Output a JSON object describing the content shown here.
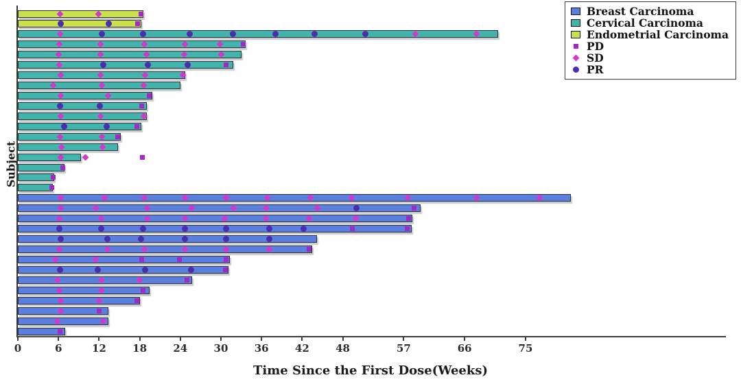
{
  "chart_data": {
    "type": "bar",
    "subtype": "horizontal-swimmer-plot",
    "title": "",
    "xlabel": "Time Since the First Dose(Weeks)",
    "ylabel": "Subject",
    "x_ticks": [
      0,
      6,
      12,
      18,
      24,
      30,
      36,
      42,
      48,
      57,
      66,
      75
    ],
    "xlim": [
      0,
      104.6
    ],
    "grid": false,
    "legend_position": "top-right",
    "groups": [
      {
        "id": "breast",
        "label": "Breast Carcinoma",
        "color": "#5b7fdf"
      },
      {
        "id": "cervical",
        "label": "Cervical Carcinoma",
        "color": "#41b5ac"
      },
      {
        "id": "endometrial",
        "label": "Endometrial Carcinoma",
        "color": "#c9e24a"
      }
    ],
    "markers": [
      {
        "id": "PD",
        "label": "PD",
        "shape": "square",
        "color": "#a428c8"
      },
      {
        "id": "SD",
        "label": "SD",
        "shape": "diamond",
        "color": "#d437cc"
      },
      {
        "id": "PR",
        "label": "PR",
        "shape": "circle",
        "color": "#4b2db2"
      }
    ],
    "bars": [
      {
        "group": "endometrial",
        "length_weeks": 18.5,
        "events": [
          [
            "SD",
            6.2
          ],
          [
            "SD",
            11.9
          ],
          [
            "PD",
            18.2
          ]
        ]
      },
      {
        "group": "endometrial",
        "length_weeks": 18.2,
        "events": [
          [
            "PR",
            6.3
          ],
          [
            "PR",
            13.4
          ],
          [
            "PD",
            17.7
          ]
        ]
      },
      {
        "group": "cervical",
        "length_weeks": 71.0,
        "events": [
          [
            "SD",
            6.2
          ],
          [
            "PR",
            12.4
          ],
          [
            "PR",
            18.5
          ],
          [
            "PR",
            25.4
          ],
          [
            "PR",
            31.8
          ],
          [
            "PR",
            38.1
          ],
          [
            "PR",
            43.8
          ],
          [
            "PR",
            51.3
          ],
          [
            "SD",
            58.7
          ],
          [
            "SD",
            67.8
          ]
        ]
      },
      {
        "group": "cervical",
        "length_weeks": 33.7,
        "events": [
          [
            "SD",
            6.1
          ],
          [
            "SD",
            12.2
          ],
          [
            "SD",
            18.7
          ],
          [
            "SD",
            24.7
          ],
          [
            "SD",
            29.8
          ],
          [
            "PD",
            33.3
          ]
        ]
      },
      {
        "group": "cervical",
        "length_weeks": 33.0,
        "events": [
          [
            "SD",
            6.0
          ],
          [
            "SD",
            12.2
          ],
          [
            "SD",
            19.0
          ],
          [
            "SD",
            24.6
          ],
          [
            "SD",
            30.1
          ]
        ]
      },
      {
        "group": "cervical",
        "length_weeks": 31.8,
        "events": [
          [
            "SD",
            6.1
          ],
          [
            "PR",
            12.6
          ],
          [
            "PR",
            19.2
          ],
          [
            "PR",
            25.1
          ],
          [
            "PD",
            30.8
          ]
        ]
      },
      {
        "group": "cervical",
        "length_weeks": 24.7,
        "events": [
          [
            "SD",
            6.3
          ],
          [
            "SD",
            12.2
          ],
          [
            "SD",
            18.8
          ],
          [
            "SD",
            24.4
          ]
        ]
      },
      {
        "group": "cervical",
        "length_weeks": 24.0,
        "events": [
          [
            "SD",
            5.2
          ],
          [
            "SD",
            12.4
          ],
          [
            "SD",
            18.6
          ]
        ]
      },
      {
        "group": "cervical",
        "length_weeks": 19.9,
        "events": [
          [
            "SD",
            6.3
          ],
          [
            "SD",
            13.3
          ],
          [
            "PD",
            19.4
          ]
        ]
      },
      {
        "group": "cervical",
        "length_weeks": 19.1,
        "events": [
          [
            "PR",
            6.2
          ],
          [
            "PR",
            12.1
          ],
          [
            "PD",
            18.3
          ]
        ]
      },
      {
        "group": "cervical",
        "length_weeks": 19.1,
        "events": [
          [
            "SD",
            6.3
          ],
          [
            "SD",
            12.2
          ],
          [
            "SD",
            18.6
          ]
        ]
      },
      {
        "group": "cervical",
        "length_weeks": 18.2,
        "events": [
          [
            "PR",
            6.8
          ],
          [
            "PR",
            13.1
          ],
          [
            "PD",
            17.6
          ]
        ]
      },
      {
        "group": "cervical",
        "length_weeks": 15.2,
        "events": [
          [
            "SD",
            6.2
          ],
          [
            "SD",
            12.4
          ],
          [
            "PD",
            14.7
          ]
        ]
      },
      {
        "group": "cervical",
        "length_weeks": 14.8,
        "events": [
          [
            "SD",
            6.4
          ],
          [
            "SD",
            12.5
          ]
        ]
      },
      {
        "group": "cervical",
        "length_weeks": 9.3,
        "events": [
          [
            "SD",
            6.3
          ],
          [
            "SD",
            10.0
          ],
          [
            "PD",
            18.4
          ]
        ]
      },
      {
        "group": "cervical",
        "length_weeks": 6.9,
        "events": [
          [
            "PD",
            6.6
          ]
        ]
      },
      {
        "group": "cervical",
        "length_weeks": 5.4,
        "events": [
          [
            "PD",
            5.2
          ]
        ]
      },
      {
        "group": "cervical",
        "length_weeks": 5.2,
        "events": [
          [
            "PD",
            5.0
          ]
        ]
      },
      {
        "group": "breast",
        "length_weeks": 81.7,
        "events": [
          [
            "SD",
            6.3
          ],
          [
            "SD",
            12.8
          ],
          [
            "SD",
            18.7
          ],
          [
            "SD",
            24.7
          ],
          [
            "SD",
            30.8
          ],
          [
            "SD",
            36.8
          ],
          [
            "SD",
            43.2
          ],
          [
            "SD",
            49.3
          ],
          [
            "SD",
            57.6
          ],
          [
            "SD",
            67.8
          ],
          [
            "SD",
            77.1
          ]
        ]
      },
      {
        "group": "breast",
        "length_weeks": 59.5,
        "events": [
          [
            "SD",
            6.3
          ],
          [
            "SD",
            11.5
          ],
          [
            "SD",
            19.1
          ],
          [
            "SD",
            25.7
          ],
          [
            "SD",
            31.9
          ],
          [
            "SD",
            36.6
          ],
          [
            "SD",
            44.2
          ],
          [
            "PR",
            50.0
          ],
          [
            "PD",
            58.5
          ]
        ]
      },
      {
        "group": "breast",
        "length_weeks": 58.3,
        "events": [
          [
            "SD",
            6.1
          ],
          [
            "SD",
            12.3
          ],
          [
            "SD",
            19.1
          ],
          [
            "SD",
            24.7
          ],
          [
            "SD",
            30.6
          ],
          [
            "SD",
            36.6
          ],
          [
            "SD",
            43.0
          ],
          [
            "SD",
            49.9
          ],
          [
            "PD",
            57.7
          ]
        ]
      },
      {
        "group": "breast",
        "length_weeks": 58.2,
        "events": [
          [
            "PR",
            6.1
          ],
          [
            "PR",
            12.3
          ],
          [
            "PR",
            18.5
          ],
          [
            "PR",
            24.7
          ],
          [
            "PR",
            30.8
          ],
          [
            "PR",
            37.1
          ],
          [
            "PR",
            42.2
          ],
          [
            "PD",
            49.4
          ],
          [
            "PD",
            57.5
          ]
        ]
      },
      {
        "group": "breast",
        "length_weeks": 44.2,
        "events": [
          [
            "PR",
            6.3
          ],
          [
            "PR",
            13.2
          ],
          [
            "PR",
            18.2
          ],
          [
            "PR",
            24.7
          ],
          [
            "PR",
            30.8
          ],
          [
            "PR",
            37.1
          ]
        ]
      },
      {
        "group": "breast",
        "length_weeks": 43.5,
        "events": [
          [
            "SD",
            6.1
          ],
          [
            "SD",
            13.2
          ],
          [
            "SD",
            18.7
          ],
          [
            "SD",
            24.7
          ],
          [
            "SD",
            30.8
          ],
          [
            "SD",
            37.1
          ],
          [
            "PD",
            43.0
          ]
        ]
      },
      {
        "group": "breast",
        "length_weeks": 31.3,
        "events": [
          [
            "SD",
            5.5
          ],
          [
            "SD",
            11.5
          ],
          [
            "PD",
            18.3
          ],
          [
            "PD",
            23.9
          ],
          [
            "PD",
            30.8
          ]
        ]
      },
      {
        "group": "breast",
        "length_weeks": 31.1,
        "events": [
          [
            "PR",
            6.2
          ],
          [
            "PR",
            11.8
          ],
          [
            "PR",
            18.8
          ],
          [
            "PR",
            25.6
          ],
          [
            "PD",
            30.7
          ]
        ]
      },
      {
        "group": "breast",
        "length_weeks": 25.7,
        "events": [
          [
            "SD",
            5.8
          ],
          [
            "SD",
            12.3
          ],
          [
            "SD",
            18.0
          ],
          [
            "PD",
            25.0
          ]
        ]
      },
      {
        "group": "breast",
        "length_weeks": 19.5,
        "events": [
          [
            "SD",
            6.1
          ],
          [
            "SD",
            12.3
          ],
          [
            "PD",
            18.5
          ]
        ]
      },
      {
        "group": "breast",
        "length_weeks": 18.0,
        "events": [
          [
            "SD",
            6.3
          ],
          [
            "SD",
            12.0
          ],
          [
            "PD",
            17.6
          ]
        ]
      },
      {
        "group": "breast",
        "length_weeks": 13.4,
        "events": [
          [
            "SD",
            6.3
          ],
          [
            "PD",
            12.0
          ]
        ]
      },
      {
        "group": "breast",
        "length_weeks": 13.4,
        "events": [
          [
            "SD",
            5.8
          ],
          [
            "SD",
            12.6
          ]
        ]
      },
      {
        "group": "breast",
        "length_weeks": 7.0,
        "events": [
          [
            "PD",
            6.2
          ]
        ]
      }
    ]
  }
}
